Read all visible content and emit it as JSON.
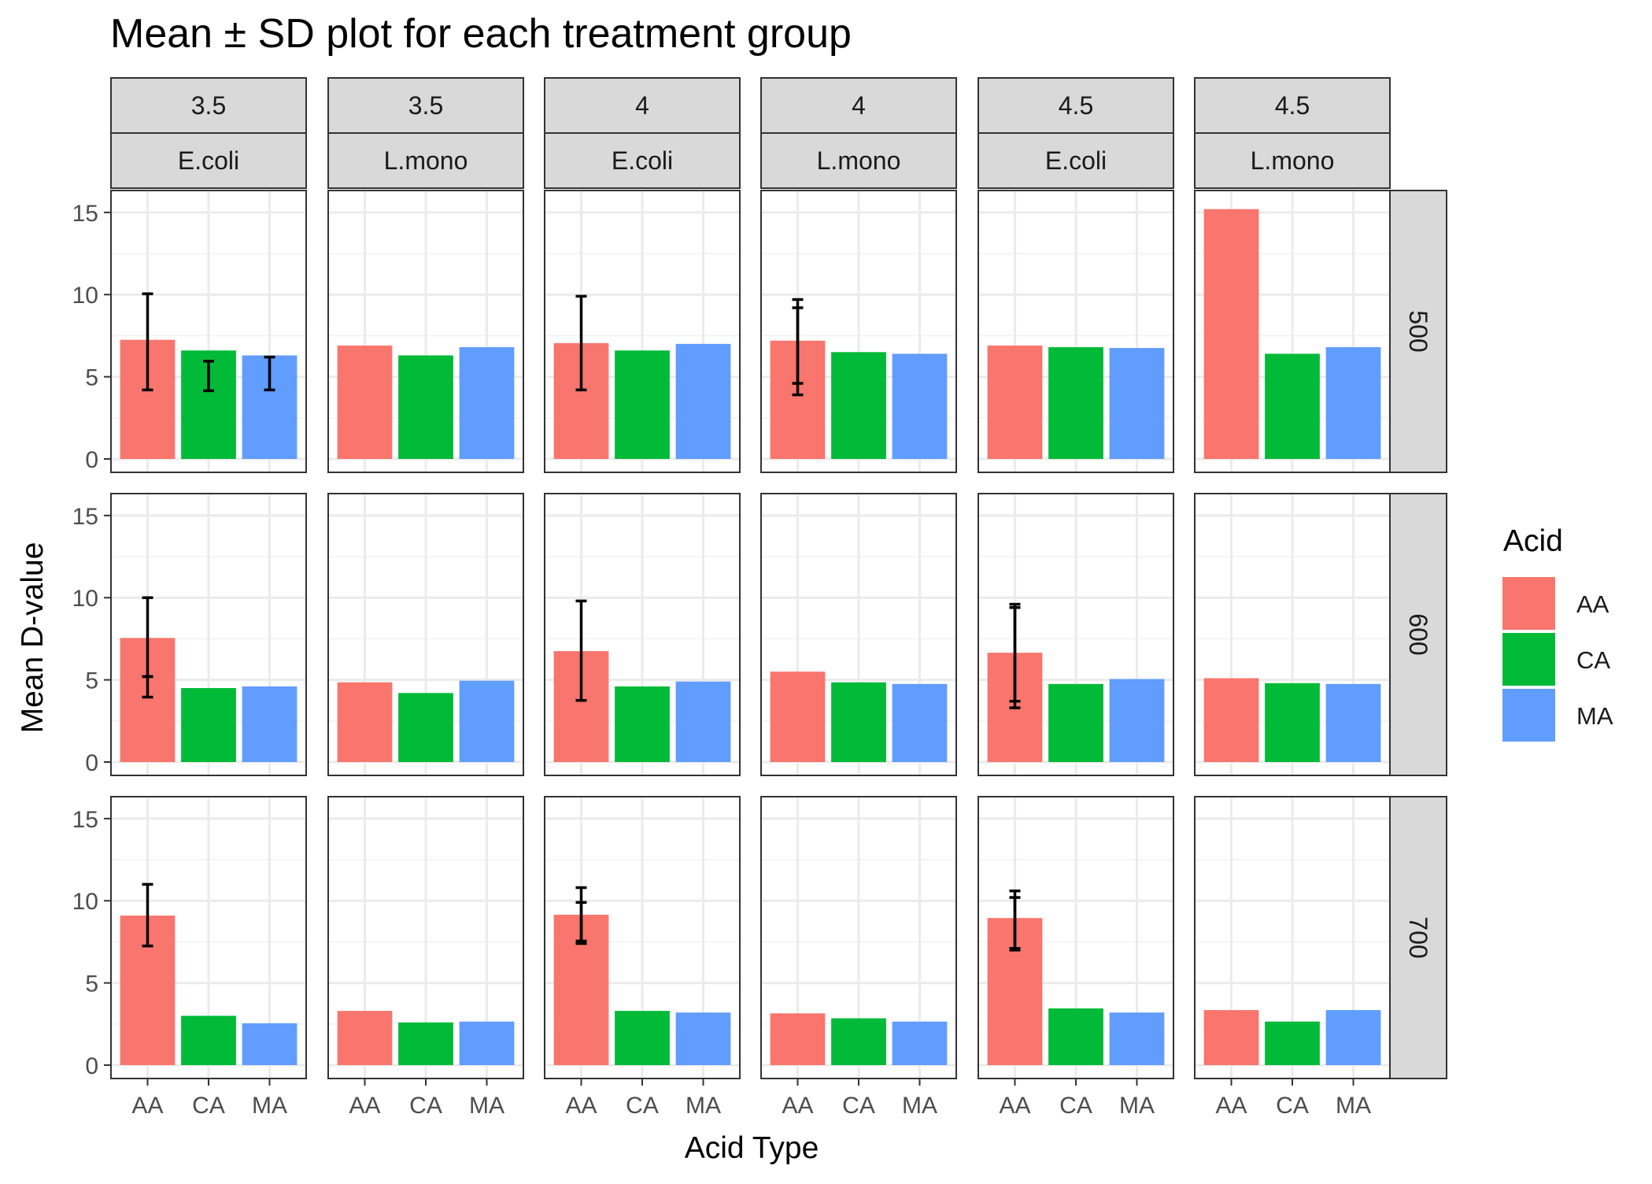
{
  "chart_data": {
    "type": "bar",
    "title": "Mean ± SD plot for each treatment group",
    "xlabel": "Acid Type",
    "ylabel": "Mean D-value",
    "categories": [
      "AA",
      "CA",
      "MA"
    ],
    "ylim": [
      0,
      16
    ],
    "yticks": [
      0,
      5,
      10,
      15
    ],
    "grid": true,
    "legend": {
      "title": "Acid",
      "placement": "right",
      "items": [
        {
          "label": "AA",
          "color": "#F8766D"
        },
        {
          "label": "CA",
          "color": "#00BA38"
        },
        {
          "label": "MA",
          "color": "#619CFF"
        }
      ]
    },
    "columns": [
      {
        "top": "3.5",
        "bottom": "E.coli"
      },
      {
        "top": "3.5",
        "bottom": "L.mono"
      },
      {
        "top": "4",
        "bottom": "E.coli"
      },
      {
        "top": "4",
        "bottom": "L.mono"
      },
      {
        "top": "4.5",
        "bottom": "E.coli"
      },
      {
        "top": "4.5",
        "bottom": "L.mono"
      }
    ],
    "rows": [
      "500",
      "600",
      "700"
    ],
    "panels": [
      [
        {
          "values": [
            7.25,
            6.6,
            6.3
          ],
          "errorbars": [
            {
              "bar": 0,
              "ymin": 4.2,
              "ymax": 10.05
            },
            {
              "bar": 1,
              "ymin": 4.15,
              "ymax": 5.95
            },
            {
              "bar": 2,
              "ymin": 4.2,
              "ymax": 6.2
            }
          ]
        },
        {
          "values": [
            6.9,
            6.3,
            6.8
          ],
          "errorbars": []
        },
        {
          "values": [
            7.05,
            6.6,
            7.0
          ],
          "errorbars": [
            {
              "bar": 0,
              "ymin": 4.2,
              "ymax": 9.9
            }
          ]
        },
        {
          "values": [
            7.2,
            6.5,
            6.4
          ],
          "errorbars": [
            {
              "bar": 0,
              "ymin": 3.9,
              "ymax": 9.7
            },
            {
              "bar": 0,
              "ymin": 4.6,
              "ymax": 9.2
            }
          ]
        },
        {
          "values": [
            6.9,
            6.8,
            6.75
          ],
          "errorbars": []
        },
        {
          "values": [
            15.2,
            6.4,
            6.8
          ],
          "errorbars": []
        }
      ],
      [
        {
          "values": [
            7.55,
            4.5,
            4.6
          ],
          "errorbars": [
            {
              "bar": 0,
              "ymin": 3.95,
              "ymax": 10.0
            },
            {
              "bar": 0,
              "ymin": 5.2,
              "ymax": 5.2
            }
          ]
        },
        {
          "values": [
            4.85,
            4.2,
            4.95
          ],
          "errorbars": []
        },
        {
          "values": [
            6.75,
            4.6,
            4.9
          ],
          "errorbars": [
            {
              "bar": 0,
              "ymin": 3.75,
              "ymax": 9.8
            }
          ]
        },
        {
          "values": [
            5.5,
            4.85,
            4.75
          ],
          "errorbars": []
        },
        {
          "values": [
            6.65,
            4.75,
            5.05
          ],
          "errorbars": [
            {
              "bar": 0,
              "ymin": 3.3,
              "ymax": 9.6
            },
            {
              "bar": 0,
              "ymin": 3.7,
              "ymax": 9.4
            }
          ]
        },
        {
          "values": [
            5.1,
            4.8,
            4.75
          ],
          "errorbars": []
        }
      ],
      [
        {
          "values": [
            9.1,
            3.0,
            2.55
          ],
          "errorbars": [
            {
              "bar": 0,
              "ymin": 7.25,
              "ymax": 11.0
            }
          ]
        },
        {
          "values": [
            3.3,
            2.6,
            2.65
          ],
          "errorbars": []
        },
        {
          "values": [
            9.15,
            3.3,
            3.2
          ],
          "errorbars": [
            {
              "bar": 0,
              "ymin": 7.4,
              "ymax": 10.8
            },
            {
              "bar": 0,
              "ymin": 7.55,
              "ymax": 9.9
            }
          ]
        },
        {
          "values": [
            3.15,
            2.85,
            2.65
          ],
          "errorbars": []
        },
        {
          "values": [
            8.95,
            3.45,
            3.2
          ],
          "errorbars": [
            {
              "bar": 0,
              "ymin": 7.0,
              "ymax": 10.6
            },
            {
              "bar": 0,
              "ymin": 7.1,
              "ymax": 10.2
            }
          ]
        },
        {
          "values": [
            3.35,
            2.65,
            3.35
          ],
          "errorbars": []
        }
      ]
    ]
  }
}
